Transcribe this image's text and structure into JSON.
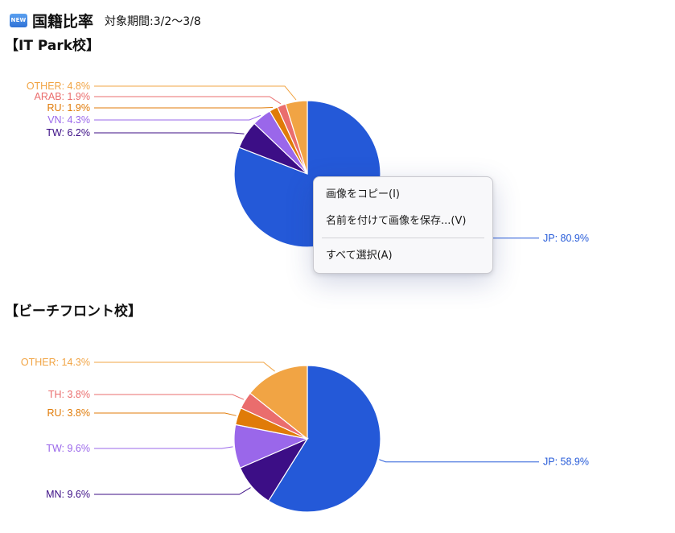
{
  "header": {
    "badge": "NEW",
    "title": "国籍比率",
    "period": "対象期間:3/2〜3/8"
  },
  "sections": [
    {
      "title": "【IT Park校】"
    },
    {
      "title": "【ビーチフロント校】"
    }
  ],
  "context_menu": {
    "items": [
      "画像をコピー(I)",
      "名前を付けて画像を保存...(V)",
      "すべて選択(A)"
    ]
  },
  "chart_data": [
    {
      "type": "pie",
      "categories": [
        "JP",
        "TW",
        "VN",
        "RU",
        "ARAB",
        "OTHER"
      ],
      "values": [
        80.9,
        6.2,
        4.3,
        1.9,
        1.9,
        4.8
      ],
      "labels": [
        "JP: 80.9%",
        "TW: 6.2%",
        "VN: 4.3%",
        "RU: 1.9%",
        "ARAB: 1.9%",
        "OTHER: 4.8%"
      ],
      "colors": [
        "#2459d8",
        "#3c0e86",
        "#9a67ea",
        "#e07b08",
        "#ea6d6d",
        "#f1a444"
      ],
      "title": "",
      "xlabel": "",
      "ylabel": "",
      "legend": "none"
    },
    {
      "type": "pie",
      "categories": [
        "JP",
        "MN",
        "TW",
        "RU",
        "TH",
        "OTHER"
      ],
      "values": [
        58.9,
        9.6,
        9.6,
        3.8,
        3.8,
        14.3
      ],
      "labels": [
        "JP: 58.9%",
        "MN: 9.6%",
        "TW: 9.6%",
        "RU: 3.8%",
        "TH: 3.8%",
        "OTHER: 14.3%"
      ],
      "colors": [
        "#2459d8",
        "#3c0e86",
        "#9a67ea",
        "#e07b08",
        "#ea6d6d",
        "#f1a444"
      ],
      "title": "",
      "xlabel": "",
      "ylabel": "",
      "legend": "none"
    }
  ]
}
